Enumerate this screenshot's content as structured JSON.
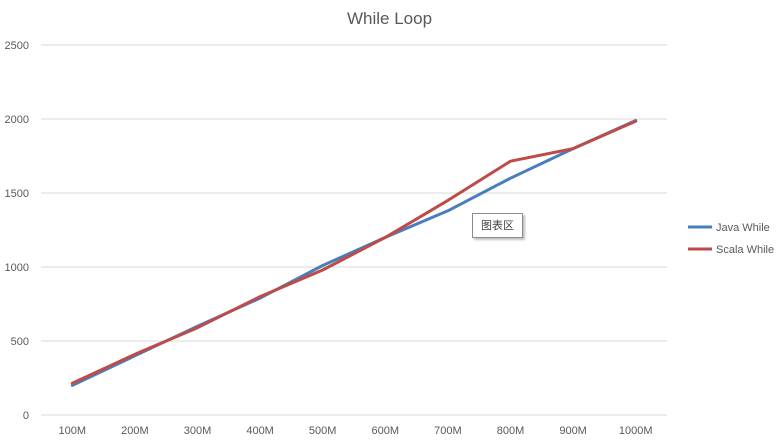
{
  "chart_data": {
    "type": "line",
    "title": "While Loop",
    "categories": [
      "100M",
      "200M",
      "300M",
      "400M",
      "500M",
      "600M",
      "700M",
      "800M",
      "900M",
      "1000M"
    ],
    "series": [
      {
        "name": "Java While",
        "color": "#4a7ebb",
        "values": [
          200,
          400,
          600,
          790,
          1010,
          1200,
          1380,
          1600,
          1800,
          1990
        ]
      },
      {
        "name": "Scala While",
        "color": "#be4b48",
        "values": [
          215,
          410,
          590,
          800,
          980,
          1200,
          1450,
          1715,
          1800,
          1985
        ]
      }
    ],
    "ylim": [
      0,
      2500
    ],
    "yticks": [
      0,
      500,
      1000,
      1500,
      2000,
      2500
    ],
    "grid": true,
    "legend_position": "right"
  },
  "tooltip": {
    "text": "图表区"
  }
}
